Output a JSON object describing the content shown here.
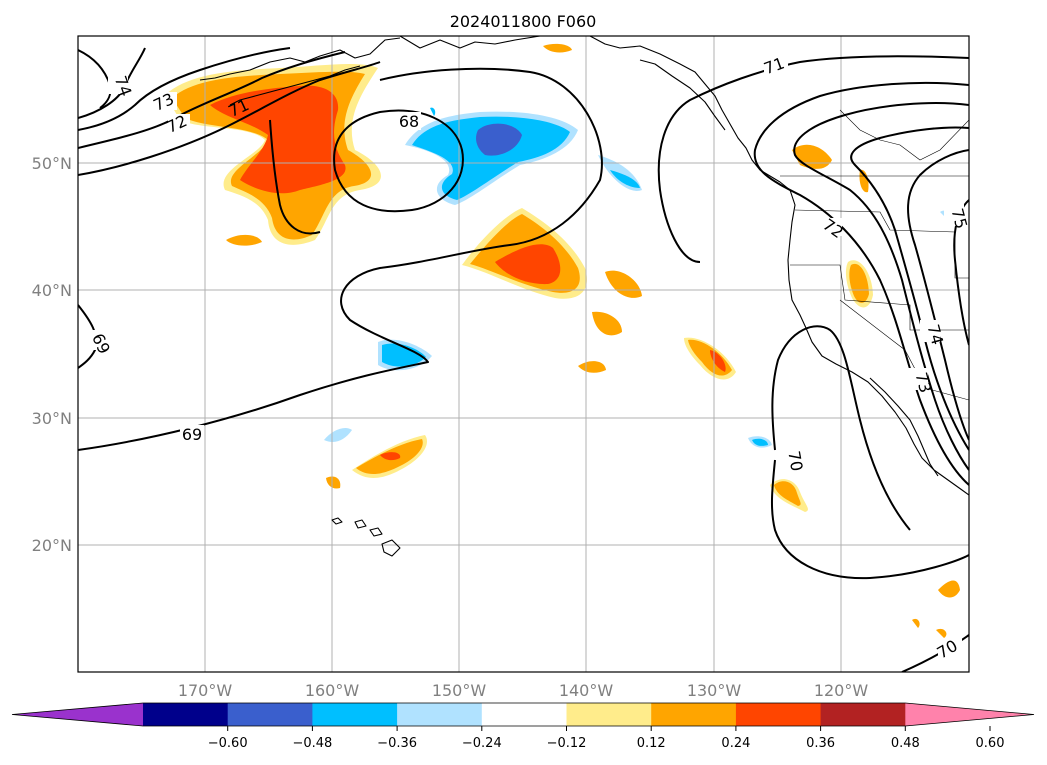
{
  "title": "2024011800 F060",
  "lat_labels": [
    "50°N",
    "40°N",
    "30°N",
    "20°N"
  ],
  "lon_labels": [
    "170°W",
    "160°W",
    "150°W",
    "140°W",
    "130°W",
    "120°W"
  ],
  "contour_labels": [
    "74",
    "73",
    "72",
    "71",
    "68",
    "69",
    "69",
    "71",
    "72",
    "75",
    "74",
    "73",
    "70",
    "70"
  ],
  "colorbar": {
    "ticks": [
      "−0.60",
      "−0.48",
      "−0.36",
      "−0.24",
      "−0.12",
      "0.12",
      "0.24",
      "0.36",
      "0.48",
      "0.60"
    ],
    "colors": [
      "#9a32cd",
      "#00008b",
      "#3a5fcd",
      "#00bfff",
      "#b0e2ff",
      "#ffffff",
      "#ffec8b",
      "#ffa500",
      "#ff4500",
      "#b22222",
      "#ff82ab"
    ]
  },
  "colors": {
    "gridline": "#b0b0b0",
    "axis_label": "#808080"
  }
}
